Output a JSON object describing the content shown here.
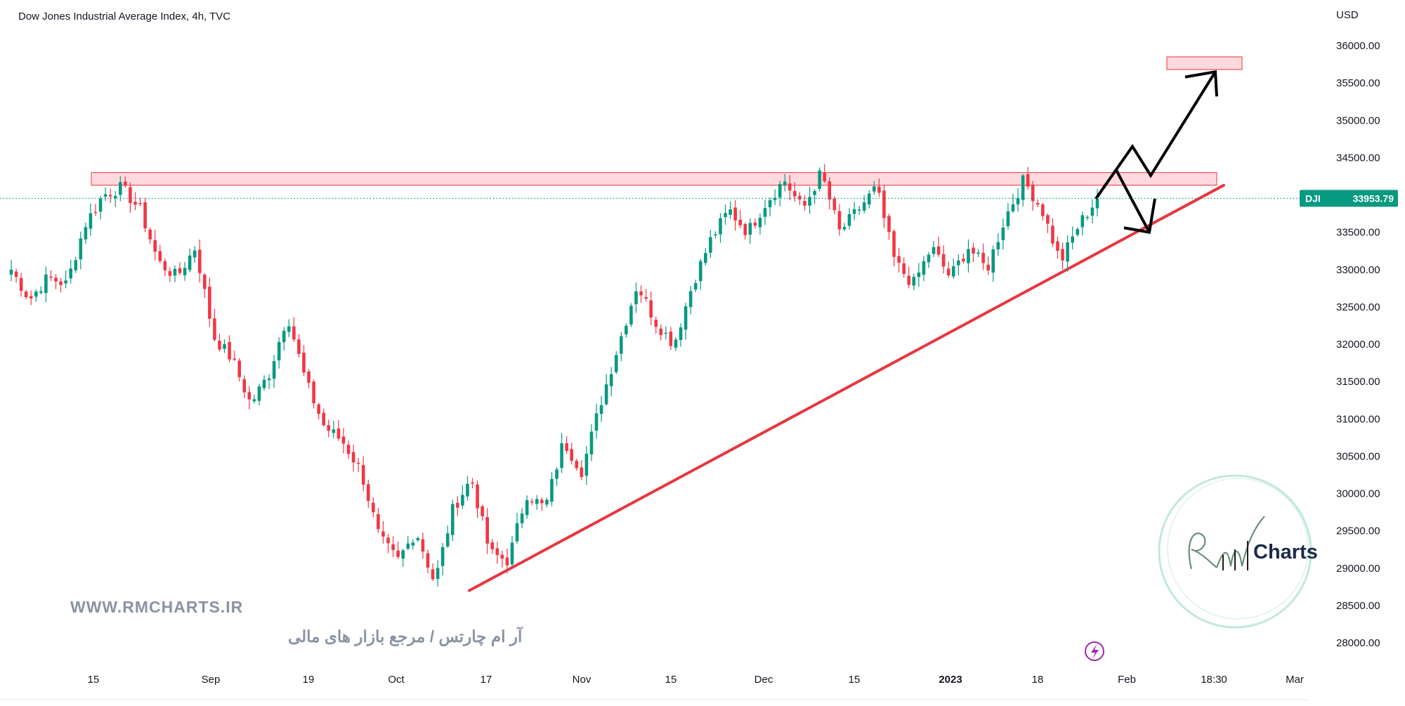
{
  "header": {
    "title": "Dow Jones Industrial Average Index, 4h, TVC"
  },
  "price_axis": {
    "currency": "USD",
    "ticks": [
      "36000.00",
      "35500.00",
      "35000.00",
      "34500.00",
      "34000.00",
      "33500.00",
      "33000.00",
      "32500.00",
      "32000.00",
      "31500.00",
      "31000.00",
      "30500.00",
      "30000.00",
      "29500.00",
      "29000.00",
      "28500.00",
      "28000.00"
    ]
  },
  "time_axis": {
    "labels": [
      "15",
      "Sep",
      "19",
      "Oct",
      "17",
      "Nov",
      "15",
      "Dec",
      "15",
      "2023",
      "18",
      "Feb",
      "18:30",
      "Mar"
    ]
  },
  "last_price": {
    "symbol": "DJI",
    "value": "33953.79",
    "value_num": 33953.79,
    "color": "#089981"
  },
  "watermark": {
    "website": "WWW.RMCHARTS.IR",
    "tagline": "آر ام چارتس / مرجع بازار های مالی",
    "logo_text": "Charts",
    "logo_script": "RM"
  },
  "colors": {
    "up": "#089981",
    "down": "#f23645",
    "trendline": "#e8363f",
    "zone_fill": "#ffd0d4",
    "zone_stroke": "#e8363f",
    "projection": "#000000",
    "axis_text": "#131722",
    "logo_ring": "#b6e3d8"
  },
  "chart_data": {
    "type": "candlestick",
    "title": "Dow Jones Industrial Average Index, 4h, TVC",
    "symbol": "DJI",
    "timeframe": "4h",
    "currency": "USD",
    "ylim": [
      27800,
      36400
    ],
    "last_price": 33953.79,
    "x_tick_labels": [
      "15",
      "Sep",
      "19",
      "Oct",
      "17",
      "Nov",
      "15",
      "Dec",
      "15",
      "2023",
      "18",
      "Feb",
      "18:30",
      "Mar"
    ],
    "anchors": [
      {
        "close": 33000
      },
      {
        "close": 32600
      },
      {
        "close": 32900
      },
      {
        "close": 32800
      },
      {
        "close": 33600
      },
      {
        "close": 34000
      },
      {
        "close": 34100
      },
      {
        "close": 33800
      },
      {
        "close": 33100
      },
      {
        "close": 32900
      },
      {
        "close": 33300
      },
      {
        "close": 32100
      },
      {
        "close": 31800
      },
      {
        "close": 31200
      },
      {
        "close": 31600
      },
      {
        "close": 32400
      },
      {
        "close": 31500
      },
      {
        "close": 30900
      },
      {
        "close": 30700
      },
      {
        "close": 30300
      },
      {
        "close": 29400
      },
      {
        "close": 29100
      },
      {
        "close": 29500
      },
      {
        "close": 28800
      },
      {
        "close": 29800
      },
      {
        "close": 30200
      },
      {
        "close": 29200
      },
      {
        "close": 29100
      },
      {
        "close": 30000
      },
      {
        "close": 29800
      },
      {
        "close": 30700
      },
      {
        "close": 30300
      },
      {
        "close": 31200
      },
      {
        "close": 32000
      },
      {
        "close": 32800
      },
      {
        "close": 32300
      },
      {
        "close": 32000
      },
      {
        "close": 32800
      },
      {
        "close": 33400
      },
      {
        "close": 33800
      },
      {
        "close": 33500
      },
      {
        "close": 33900
      },
      {
        "close": 34200
      },
      {
        "close": 33800
      },
      {
        "close": 34300
      },
      {
        "close": 33500
      },
      {
        "close": 33800
      },
      {
        "close": 34100
      },
      {
        "close": 33100
      },
      {
        "close": 32800
      },
      {
        "close": 33300
      },
      {
        "close": 32900
      },
      {
        "close": 33300
      },
      {
        "close": 33000
      },
      {
        "close": 33700
      },
      {
        "close": 34200
      },
      {
        "close": 33800
      },
      {
        "close": 33100
      },
      {
        "close": 33600
      },
      {
        "close": 33953.79
      }
    ],
    "series": [
      {
        "name": "DJI",
        "kind": "candles"
      }
    ],
    "annotations": [
      {
        "type": "resistance_zone",
        "y_range": [
          34130,
          34300
        ],
        "x_range_labels": [
          "15",
          "Feb"
        ]
      },
      {
        "type": "target_zone",
        "y_range": [
          35680,
          35850
        ],
        "x_range_labels": [
          "Feb",
          "18:30"
        ]
      },
      {
        "type": "trendline",
        "from": {
          "x_label": "17",
          "y": 28700
        },
        "to": {
          "x_label": "18:30",
          "y": 34130
        }
      },
      {
        "type": "projection_path",
        "points": [
          33950,
          34650,
          34260,
          35650
        ]
      },
      {
        "type": "projection_arrow",
        "points": [
          34350,
          33500
        ]
      }
    ],
    "grid": false,
    "legend": "none"
  }
}
